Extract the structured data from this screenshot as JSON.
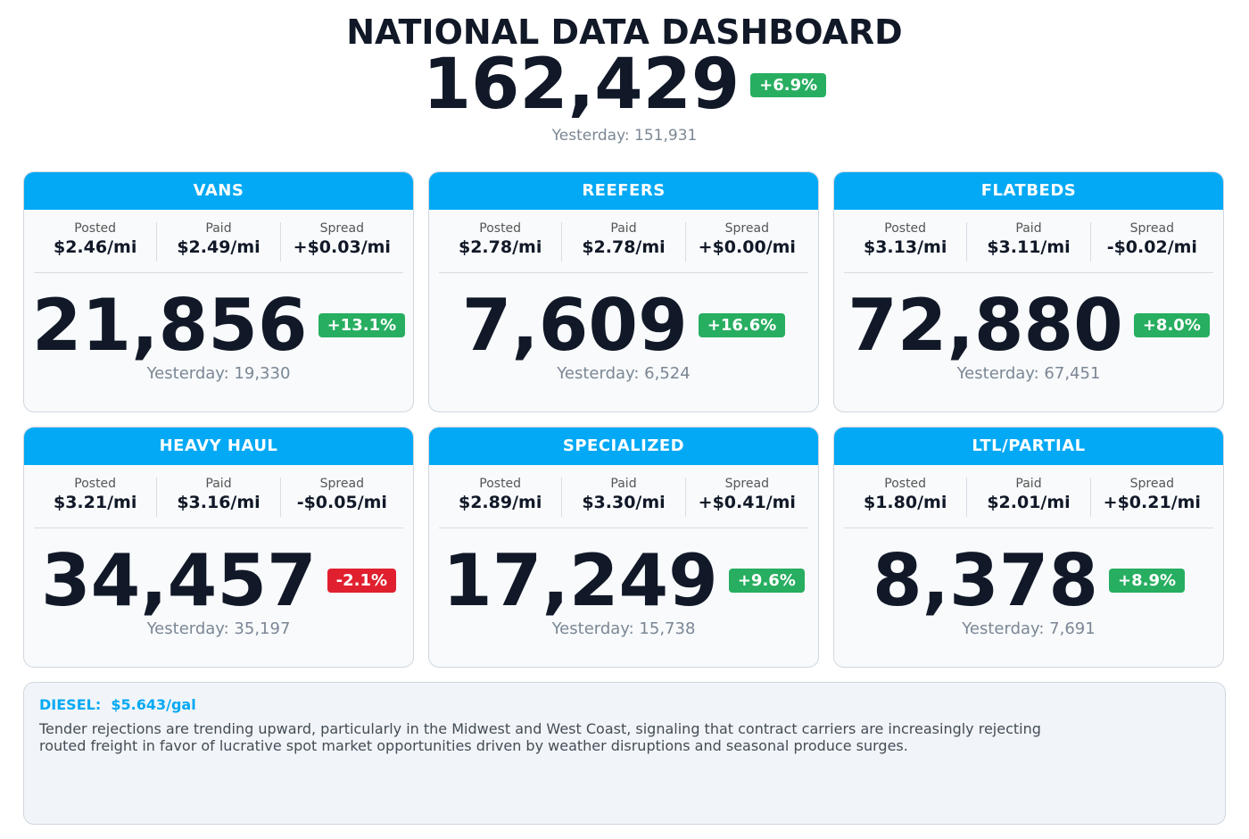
{
  "header": {
    "title": "NATIONAL DATA DASHBOARD",
    "total": "162,429",
    "change": "+6.9%",
    "change_color": "#27ae60",
    "yesterday": "Yesterday: 151,931"
  },
  "metric_labels": [
    "Posted",
    "Paid",
    "Spread"
  ],
  "cards": [
    {
      "name": "VANS",
      "metrics": [
        "$2.46/mi",
        "$2.49/mi",
        "+$0.03/mi"
      ],
      "total": "21,856",
      "change": "+13.1%",
      "change_color": "#27ae60",
      "yesterday": "Yesterday: 19,330"
    },
    {
      "name": "REEFERS",
      "metrics": [
        "$2.78/mi",
        "$2.78/mi",
        "+$0.00/mi"
      ],
      "total": "7,609",
      "change": "+16.6%",
      "change_color": "#27ae60",
      "yesterday": "Yesterday: 6,524"
    },
    {
      "name": "FLATBEDS",
      "metrics": [
        "$3.13/mi",
        "$3.11/mi",
        "-$0.02/mi"
      ],
      "total": "72,880",
      "change": "+8.0%",
      "change_color": "#27ae60",
      "yesterday": "Yesterday: 67,451"
    },
    {
      "name": "HEAVY HAUL",
      "metrics": [
        "$3.21/mi",
        "$3.16/mi",
        "-$0.05/mi"
      ],
      "total": "34,457",
      "change": "-2.1%",
      "change_color": "#e0202e",
      "yesterday": "Yesterday: 35,197"
    },
    {
      "name": "SPECIALIZED",
      "metrics": [
        "$2.89/mi",
        "$3.30/mi",
        "+$0.41/mi"
      ],
      "total": "17,249",
      "change": "+9.6%",
      "change_color": "#27ae60",
      "yesterday": "Yesterday: 15,738"
    },
    {
      "name": "LTL/PARTIAL",
      "metrics": [
        "$1.80/mi",
        "$2.01/mi",
        "+$0.21/mi"
      ],
      "total": "8,378",
      "change": "+8.9%",
      "change_color": "#27ae60",
      "yesterday": "Yesterday: 7,691"
    }
  ],
  "footer": {
    "diesel_label": "DIESEL:",
    "diesel_price": "$5.643/gal",
    "note": "Tender rejections are trending upward, particularly in the Midwest and West Coast, signaling that contract carriers are increasingly rejecting routed freight in favor of lucrative spot market opportunities driven by weather disruptions and seasonal produce surges."
  }
}
